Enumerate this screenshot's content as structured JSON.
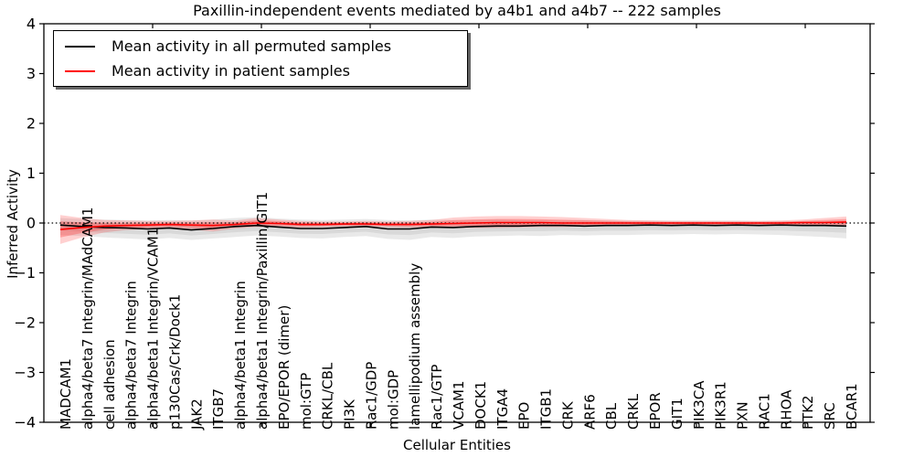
{
  "chart_data": {
    "type": "line",
    "title": "Paxillin-independent events mediated by a4b1 and a4b7 -- 222 samples",
    "xlabel": "Cellular Entities",
    "ylabel": "Inferred Activity",
    "ylim": [
      -4,
      4
    ],
    "yticks": [
      -4,
      -3,
      -2,
      -1,
      0,
      1,
      2,
      3,
      4
    ],
    "grid": false,
    "zero_reference_line": 0,
    "legend_position": "upper left",
    "categories": [
      "MADCAM1",
      "alpha4/beta7 Integrin/MAdCAM1",
      "cell adhesion",
      "alpha4/beta7 Integrin",
      "alpha4/beta1 Integrin/VCAM1",
      "p130Cas/Crk/Dock1",
      "JAK2",
      "ITGB7",
      "alpha4/beta1 Integrin",
      "alpha4/beta1 Integrin/Paxillin/GIT1",
      "EPO/EPOR (dimer)",
      "mol:GTP",
      "CRKL/CBL",
      "PI3K",
      "Rac1/GDP",
      "mol:GDP",
      "lamellipodium assembly",
      "Rac1/GTP",
      "VCAM1",
      "DOCK1",
      "ITGA4",
      "EPO",
      "ITGB1",
      "CRK",
      "ARF6",
      "CBL",
      "CRKL",
      "EPOR",
      "GIT1",
      "PIK3CA",
      "PIK3R1",
      "PXN",
      "RAC1",
      "RHOA",
      "PTK2",
      "SRC",
      "BCAR1"
    ],
    "series": [
      {
        "name": "Mean activity in all permuted samples",
        "color": "#000000",
        "band_color": "#999999",
        "values": [
          -0.04,
          -0.07,
          -0.09,
          -0.1,
          -0.12,
          -0.1,
          -0.14,
          -0.11,
          -0.07,
          -0.05,
          -0.08,
          -0.11,
          -0.11,
          -0.09,
          -0.07,
          -0.12,
          -0.12,
          -0.08,
          -0.09,
          -0.07,
          -0.06,
          -0.06,
          -0.05,
          -0.05,
          -0.06,
          -0.05,
          -0.05,
          -0.04,
          -0.05,
          -0.04,
          -0.05,
          -0.04,
          -0.05,
          -0.04,
          -0.05,
          -0.05,
          -0.06
        ],
        "band_upper": [
          0.1,
          0.08,
          0.07,
          0.06,
          0.05,
          0.06,
          0.05,
          0.07,
          0.1,
          0.12,
          0.09,
          0.07,
          0.06,
          0.07,
          0.08,
          0.06,
          0.05,
          0.07,
          0.06,
          0.06,
          0.07,
          0.06,
          0.06,
          0.05,
          0.06,
          0.05,
          0.05,
          0.05,
          0.05,
          0.05,
          0.05,
          0.05,
          0.04,
          0.04,
          0.04,
          0.04,
          0.05
        ],
        "band_lower": [
          -0.24,
          -0.26,
          -0.29,
          -0.31,
          -0.33,
          -0.3,
          -0.34,
          -0.31,
          -0.28,
          -0.25,
          -0.27,
          -0.3,
          -0.31,
          -0.28,
          -0.26,
          -0.32,
          -0.34,
          -0.28,
          -0.3,
          -0.27,
          -0.26,
          -0.25,
          -0.26,
          -0.24,
          -0.25,
          -0.24,
          -0.24,
          -0.23,
          -0.23,
          -0.22,
          -0.23,
          -0.22,
          -0.23,
          -0.24,
          -0.26,
          -0.28,
          -0.31
        ]
      },
      {
        "name": "Mean activity in patient samples",
        "color": "#ff0000",
        "band_color": "#ff2a2a",
        "values": [
          -0.13,
          -0.09,
          -0.06,
          -0.05,
          -0.04,
          -0.03,
          -0.04,
          -0.05,
          -0.03,
          0.0,
          -0.01,
          -0.03,
          -0.03,
          -0.02,
          -0.02,
          -0.03,
          -0.03,
          -0.02,
          -0.01,
          0.0,
          0.01,
          0.01,
          0.01,
          0.0,
          0.0,
          0.0,
          0.0,
          0.0,
          0.0,
          0.0,
          0.0,
          0.0,
          0.0,
          0.0,
          0.01,
          0.01,
          0.02
        ],
        "band_upper": [
          0.16,
          0.1,
          0.06,
          0.05,
          0.04,
          0.04,
          0.05,
          0.07,
          0.05,
          0.1,
          0.07,
          0.04,
          0.03,
          0.03,
          0.04,
          0.03,
          0.04,
          0.06,
          0.11,
          0.13,
          0.14,
          0.14,
          0.13,
          0.12,
          0.1,
          0.08,
          0.06,
          0.05,
          0.04,
          0.04,
          0.04,
          0.04,
          0.04,
          0.05,
          0.07,
          0.1,
          0.13
        ],
        "band_lower": [
          -0.42,
          -0.29,
          -0.19,
          -0.14,
          -0.12,
          -0.1,
          -0.13,
          -0.17,
          -0.11,
          -0.08,
          -0.08,
          -0.09,
          -0.08,
          -0.07,
          -0.07,
          -0.08,
          -0.09,
          -0.09,
          -0.1,
          -0.1,
          -0.1,
          -0.09,
          -0.08,
          -0.08,
          -0.07,
          -0.06,
          -0.05,
          -0.05,
          -0.05,
          -0.05,
          -0.05,
          -0.05,
          -0.05,
          -0.05,
          -0.06,
          -0.06,
          -0.07
        ]
      }
    ]
  }
}
